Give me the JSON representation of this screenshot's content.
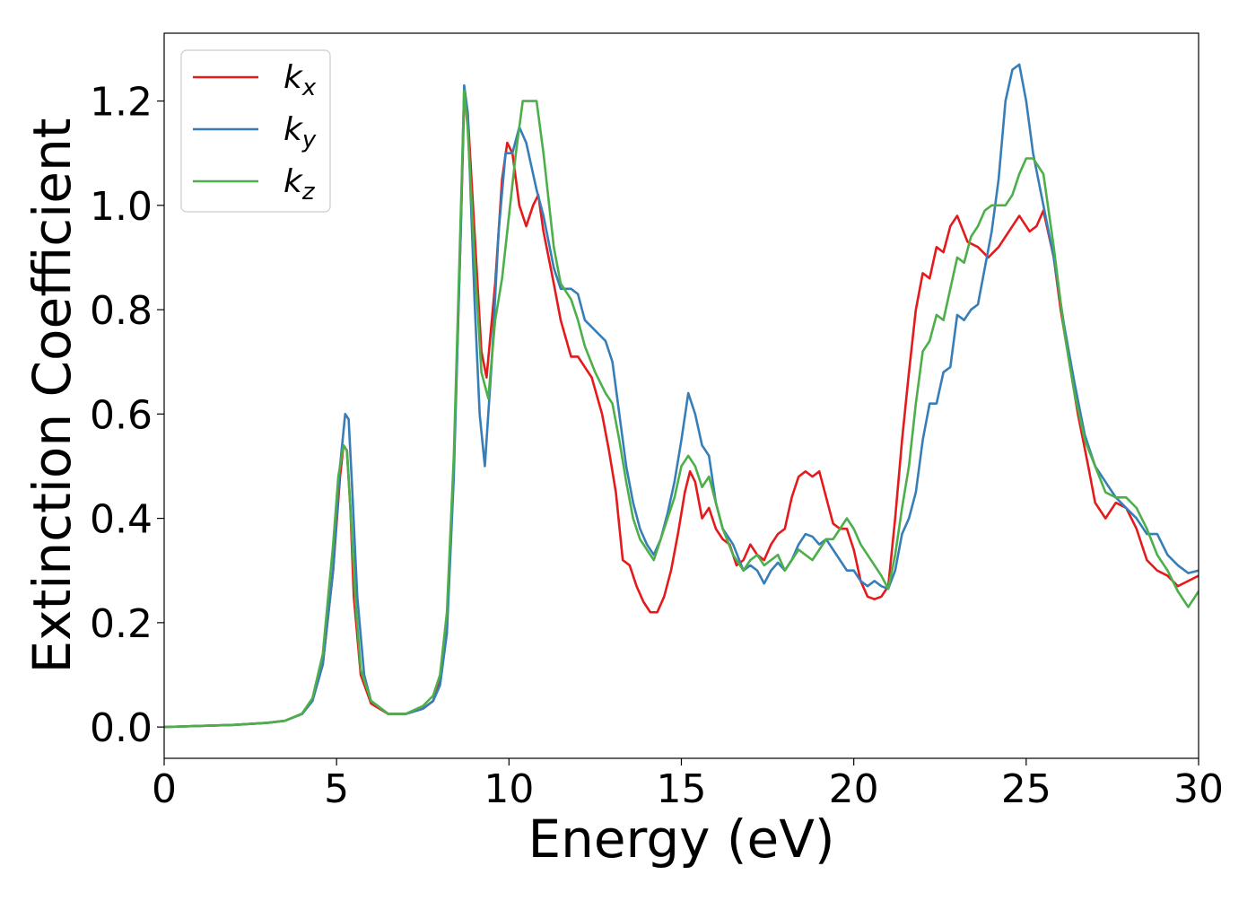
{
  "chart_data": {
    "type": "line",
    "title": "",
    "xlabel": "Energy (eV)",
    "ylabel": "Extinction Coefficient",
    "xlim": [
      0,
      30
    ],
    "ylim": [
      -0.06,
      1.33
    ],
    "xticks": [
      0,
      5,
      10,
      15,
      20,
      25,
      30
    ],
    "xtick_labels": [
      "0",
      "5",
      "10",
      "15",
      "20",
      "25",
      "30"
    ],
    "yticks": [
      0.0,
      0.2,
      0.4,
      0.6,
      0.8,
      1.0,
      1.2
    ],
    "ytick_labels": [
      "0.0",
      "0.2",
      "0.4",
      "0.6",
      "0.8",
      "1.0",
      "1.2"
    ],
    "grid": false,
    "legend_position": "top-left",
    "series": [
      {
        "name": "k",
        "subscript": "x",
        "color": "#e41a1c",
        "x": [
          0,
          1,
          2,
          3,
          3.5,
          4,
          4.3,
          4.6,
          4.9,
          5.1,
          5.2,
          5.3,
          5.4,
          5.5,
          5.7,
          6.0,
          6.5,
          7.0,
          7.5,
          7.8,
          8.0,
          8.2,
          8.4,
          8.6,
          8.7,
          8.8,
          9.0,
          9.2,
          9.35,
          9.6,
          9.8,
          9.95,
          10.1,
          10.3,
          10.5,
          10.7,
          10.85,
          11.0,
          11.3,
          11.5,
          11.8,
          12.0,
          12.2,
          12.4,
          12.7,
          12.9,
          13.1,
          13.3,
          13.5,
          13.7,
          13.9,
          14.1,
          14.3,
          14.5,
          14.7,
          14.9,
          15.1,
          15.25,
          15.4,
          15.6,
          15.8,
          16.0,
          16.2,
          16.4,
          16.6,
          16.8,
          17.0,
          17.2,
          17.4,
          17.6,
          17.8,
          18.0,
          18.2,
          18.4,
          18.6,
          18.8,
          19.0,
          19.2,
          19.4,
          19.6,
          19.8,
          20.0,
          20.2,
          20.4,
          20.6,
          20.8,
          21.0,
          21.2,
          21.4,
          21.6,
          21.8,
          22.0,
          22.2,
          22.4,
          22.6,
          22.8,
          23.0,
          23.3,
          23.6,
          23.9,
          24.2,
          24.5,
          24.8,
          25.1,
          25.3,
          25.5,
          25.8,
          26.0,
          26.2,
          26.5,
          26.8,
          27.0,
          27.3,
          27.6,
          27.9,
          28.2,
          28.5,
          28.8,
          29.1,
          29.4,
          29.7,
          30.0
        ],
        "values": [
          0.0,
          0.002,
          0.004,
          0.008,
          0.012,
          0.025,
          0.05,
          0.12,
          0.3,
          0.48,
          0.54,
          0.53,
          0.42,
          0.25,
          0.1,
          0.045,
          0.025,
          0.025,
          0.035,
          0.05,
          0.09,
          0.2,
          0.5,
          0.95,
          1.2,
          1.18,
          0.95,
          0.72,
          0.67,
          0.85,
          1.05,
          1.12,
          1.1,
          1.0,
          0.96,
          1.0,
          1.02,
          0.95,
          0.85,
          0.78,
          0.71,
          0.71,
          0.69,
          0.67,
          0.6,
          0.53,
          0.45,
          0.32,
          0.31,
          0.27,
          0.24,
          0.22,
          0.22,
          0.25,
          0.3,
          0.37,
          0.45,
          0.49,
          0.47,
          0.4,
          0.42,
          0.38,
          0.36,
          0.35,
          0.31,
          0.32,
          0.35,
          0.33,
          0.32,
          0.35,
          0.37,
          0.38,
          0.44,
          0.48,
          0.49,
          0.48,
          0.49,
          0.44,
          0.39,
          0.38,
          0.38,
          0.34,
          0.28,
          0.25,
          0.245,
          0.25,
          0.27,
          0.4,
          0.55,
          0.68,
          0.8,
          0.87,
          0.86,
          0.92,
          0.91,
          0.96,
          0.98,
          0.93,
          0.92,
          0.9,
          0.92,
          0.95,
          0.98,
          0.95,
          0.96,
          0.99,
          0.9,
          0.8,
          0.72,
          0.6,
          0.5,
          0.43,
          0.4,
          0.43,
          0.42,
          0.38,
          0.32,
          0.3,
          0.29,
          0.27,
          0.28,
          0.29
        ]
      },
      {
        "name": "k",
        "subscript": "y",
        "color": "#377eb8",
        "x": [
          0,
          1,
          2,
          3,
          3.5,
          4,
          4.3,
          4.6,
          4.9,
          5.1,
          5.25,
          5.35,
          5.45,
          5.6,
          5.8,
          6.0,
          6.5,
          7.0,
          7.5,
          7.8,
          8.0,
          8.2,
          8.4,
          8.6,
          8.7,
          8.8,
          9.0,
          9.15,
          9.3,
          9.5,
          9.7,
          9.9,
          10.1,
          10.3,
          10.5,
          10.8,
          11.0,
          11.3,
          11.5,
          11.8,
          12.0,
          12.2,
          12.5,
          12.8,
          13.0,
          13.2,
          13.4,
          13.6,
          13.8,
          14.0,
          14.2,
          14.4,
          14.6,
          14.8,
          15.0,
          15.2,
          15.4,
          15.6,
          15.8,
          16.0,
          16.2,
          16.5,
          16.8,
          17.0,
          17.2,
          17.4,
          17.6,
          17.8,
          18.0,
          18.2,
          18.4,
          18.6,
          18.8,
          19.0,
          19.2,
          19.4,
          19.6,
          19.8,
          20.0,
          20.2,
          20.4,
          20.6,
          20.8,
          21.0,
          21.2,
          21.4,
          21.6,
          21.8,
          22.0,
          22.2,
          22.4,
          22.6,
          22.8,
          23.0,
          23.2,
          23.4,
          23.6,
          23.8,
          24.0,
          24.2,
          24.4,
          24.6,
          24.8,
          25.0,
          25.2,
          25.5,
          25.8,
          26.1,
          26.4,
          26.7,
          27.0,
          27.3,
          27.6,
          27.9,
          28.2,
          28.5,
          28.8,
          29.1,
          29.4,
          29.7,
          30.0
        ],
        "values": [
          0.0,
          0.002,
          0.004,
          0.008,
          0.012,
          0.025,
          0.05,
          0.12,
          0.3,
          0.5,
          0.6,
          0.59,
          0.46,
          0.25,
          0.1,
          0.05,
          0.025,
          0.025,
          0.035,
          0.05,
          0.08,
          0.18,
          0.48,
          0.95,
          1.23,
          1.18,
          0.82,
          0.6,
          0.5,
          0.7,
          0.95,
          1.1,
          1.1,
          1.15,
          1.12,
          1.03,
          0.98,
          0.88,
          0.84,
          0.84,
          0.83,
          0.78,
          0.76,
          0.74,
          0.7,
          0.6,
          0.5,
          0.43,
          0.38,
          0.35,
          0.33,
          0.36,
          0.41,
          0.47,
          0.55,
          0.64,
          0.6,
          0.54,
          0.52,
          0.43,
          0.38,
          0.35,
          0.3,
          0.31,
          0.3,
          0.275,
          0.3,
          0.315,
          0.3,
          0.32,
          0.35,
          0.37,
          0.365,
          0.35,
          0.36,
          0.34,
          0.32,
          0.3,
          0.3,
          0.28,
          0.27,
          0.28,
          0.27,
          0.265,
          0.3,
          0.37,
          0.4,
          0.45,
          0.55,
          0.62,
          0.62,
          0.68,
          0.69,
          0.79,
          0.78,
          0.8,
          0.81,
          0.88,
          0.95,
          1.05,
          1.2,
          1.26,
          1.27,
          1.2,
          1.1,
          1.0,
          0.9,
          0.77,
          0.66,
          0.56,
          0.5,
          0.47,
          0.44,
          0.42,
          0.4,
          0.37,
          0.37,
          0.33,
          0.31,
          0.295,
          0.3
        ]
      },
      {
        "name": "k",
        "subscript": "z",
        "color": "#4daf4a",
        "x": [
          0,
          1,
          2,
          3,
          3.5,
          4,
          4.3,
          4.6,
          4.9,
          5.05,
          5.2,
          5.3,
          5.4,
          5.55,
          5.7,
          6.0,
          6.5,
          7.0,
          7.5,
          7.8,
          8.0,
          8.2,
          8.4,
          8.6,
          8.7,
          8.8,
          9.0,
          9.2,
          9.4,
          9.6,
          9.8,
          10.0,
          10.2,
          10.4,
          10.6,
          10.8,
          11.0,
          11.3,
          11.5,
          11.8,
          12.0,
          12.2,
          12.5,
          12.8,
          13.0,
          13.2,
          13.4,
          13.6,
          13.8,
          14.0,
          14.2,
          14.4,
          14.6,
          14.8,
          15.0,
          15.2,
          15.4,
          15.6,
          15.8,
          16.0,
          16.2,
          16.5,
          16.8,
          17.0,
          17.2,
          17.4,
          17.6,
          17.8,
          18.0,
          18.2,
          18.4,
          18.6,
          18.8,
          19.0,
          19.2,
          19.4,
          19.6,
          19.8,
          20.0,
          20.2,
          20.4,
          20.6,
          20.8,
          21.0,
          21.2,
          21.4,
          21.6,
          21.8,
          22.0,
          22.2,
          22.4,
          22.6,
          22.8,
          23.0,
          23.2,
          23.4,
          23.6,
          23.8,
          24.0,
          24.2,
          24.4,
          24.6,
          24.8,
          25.0,
          25.2,
          25.5,
          25.8,
          26.1,
          26.4,
          26.7,
          27.0,
          27.3,
          27.6,
          27.9,
          28.2,
          28.5,
          28.8,
          29.1,
          29.4,
          29.7,
          30.0
        ],
        "values": [
          0.0,
          0.002,
          0.004,
          0.008,
          0.012,
          0.026,
          0.055,
          0.14,
          0.35,
          0.48,
          0.54,
          0.53,
          0.42,
          0.24,
          0.11,
          0.05,
          0.025,
          0.025,
          0.04,
          0.06,
          0.1,
          0.22,
          0.52,
          0.98,
          1.22,
          1.15,
          0.9,
          0.68,
          0.63,
          0.78,
          0.86,
          0.98,
          1.1,
          1.2,
          1.2,
          1.2,
          1.1,
          0.92,
          0.85,
          0.82,
          0.78,
          0.73,
          0.68,
          0.64,
          0.62,
          0.55,
          0.47,
          0.4,
          0.36,
          0.34,
          0.32,
          0.36,
          0.4,
          0.44,
          0.5,
          0.52,
          0.5,
          0.46,
          0.48,
          0.43,
          0.38,
          0.33,
          0.3,
          0.32,
          0.33,
          0.31,
          0.32,
          0.33,
          0.3,
          0.32,
          0.34,
          0.33,
          0.32,
          0.34,
          0.36,
          0.36,
          0.38,
          0.4,
          0.38,
          0.35,
          0.33,
          0.31,
          0.29,
          0.265,
          0.33,
          0.42,
          0.5,
          0.62,
          0.72,
          0.74,
          0.79,
          0.78,
          0.84,
          0.9,
          0.89,
          0.94,
          0.96,
          0.99,
          1.0,
          1.0,
          1.0,
          1.02,
          1.06,
          1.09,
          1.09,
          1.06,
          0.92,
          0.76,
          0.64,
          0.55,
          0.5,
          0.45,
          0.44,
          0.44,
          0.42,
          0.38,
          0.33,
          0.3,
          0.26,
          0.23,
          0.26
        ]
      }
    ]
  }
}
